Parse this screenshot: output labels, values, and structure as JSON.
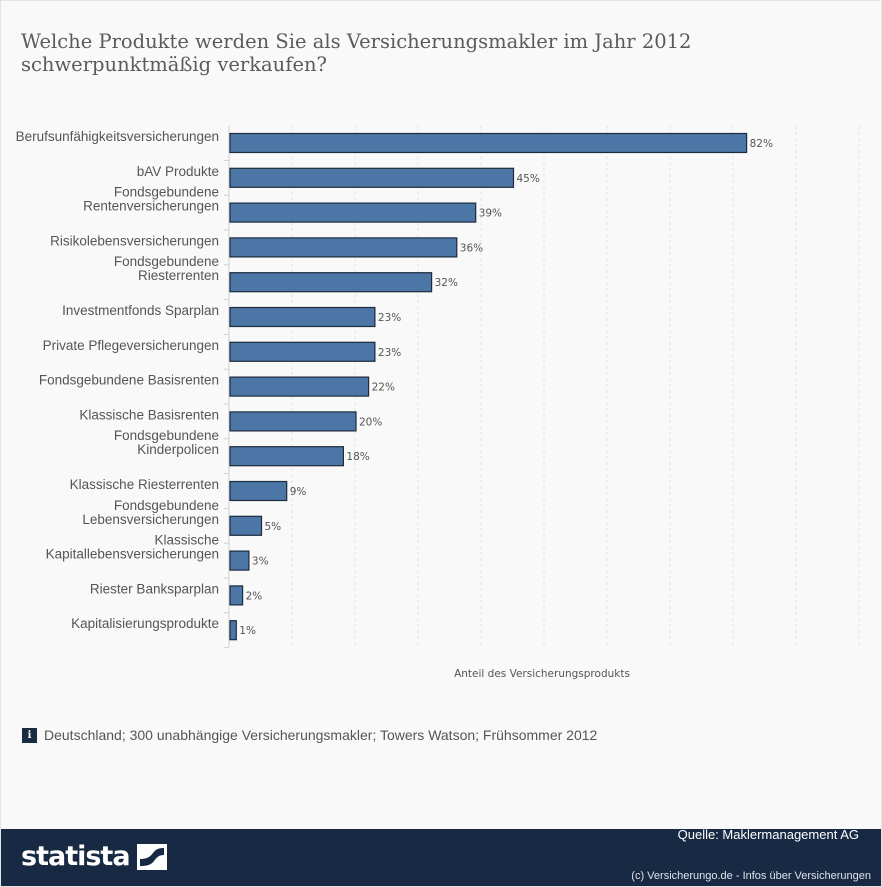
{
  "title": "Welche Produkte werden Sie als Versicherungsmakler im Jahr 2012 schwerpunktmäßig verkaufen?",
  "colors": {
    "bar": "#4b76a6",
    "bar_border": "#1d2b3c",
    "footer": "#182a43"
  },
  "chart_data": {
    "type": "bar",
    "orientation": "horizontal",
    "categories": [
      [
        "Berufsunfähigkeitsversicherungen"
      ],
      [
        "bAV Produkte"
      ],
      [
        "Fondsgebundene",
        "Rentenversicherungen"
      ],
      [
        "Risikolebensversicherungen"
      ],
      [
        "Fondsgebundene",
        "Riesterrenten"
      ],
      [
        "Investmentfonds Sparplan"
      ],
      [
        "Private Pflegeversicherungen"
      ],
      [
        "Fondsgebundene Basisrenten"
      ],
      [
        "Klassische Basisrenten"
      ],
      [
        "Fondsgebundene",
        "Kinderpolicen"
      ],
      [
        "Klassische Riesterrenten"
      ],
      [
        "Fondsgebundene",
        "Lebensversicherungen"
      ],
      [
        "Klassische",
        "Kapitallebensversicherungen"
      ],
      [
        "Riester Banksparplan"
      ],
      [
        "Kapitalisierungsprodukte"
      ]
    ],
    "values": [
      82,
      45,
      39,
      36,
      32,
      23,
      23,
      22,
      20,
      18,
      9,
      5,
      3,
      2,
      1
    ],
    "value_suffix": "%",
    "xlabel": "Anteil des Versicherungsprodukts",
    "xlim": [
      0,
      100
    ],
    "grid": true,
    "legend": "none"
  },
  "info_icon": "info-icon",
  "info_text": "Deutschland; 300 unabhängige Versicherungsmakler; Towers Watson; Frühsommer 2012",
  "footer": {
    "logo_text": "statista",
    "logo_icon": "statista-logo-icon",
    "source": "Quelle: Maklermanagement AG",
    "copyright": "(c) Versicherungo.de - Infos über Versicherungen"
  }
}
